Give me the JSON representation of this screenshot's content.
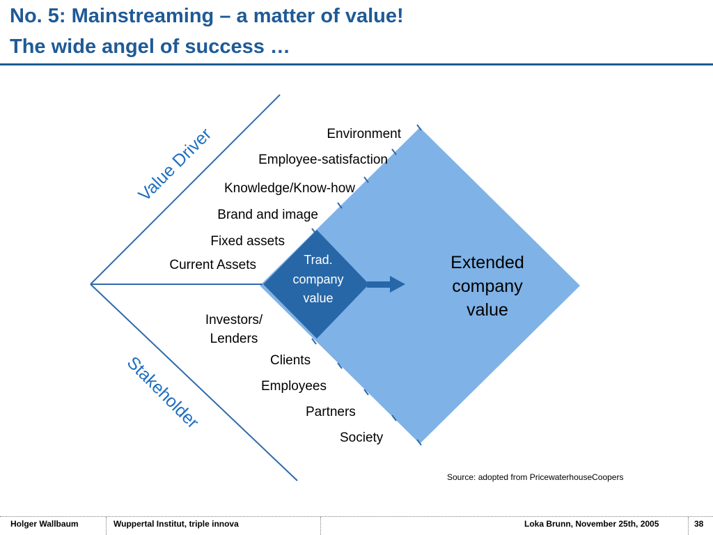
{
  "title": {
    "line1": "No. 5: Mainstreaming – a matter of value!",
    "line2": "The wide angel of success …"
  },
  "diagram": {
    "axis_upper": "Value Driver",
    "axis_lower": "Stakeholder",
    "value_drivers": [
      "Environment",
      "Employee-satisfaction",
      "Knowledge/Know-how",
      "Brand and image",
      "Fixed assets",
      "Current Assets"
    ],
    "stakeholders": [
      "Investors/",
      "Lenders",
      "Clients",
      "Employees",
      "Partners",
      "Society"
    ],
    "inner_label": [
      "Trad.",
      "company",
      "value"
    ],
    "outer_label": [
      "Extended",
      "company",
      "value"
    ]
  },
  "source": "Source: adopted from PricewaterhouseCoopers",
  "footer": {
    "author": "Holger Wallbaum",
    "institute": "Wuppertal Institut, triple innova",
    "event": "Loka Brunn, November 25th, 2005",
    "page": "38"
  },
  "colors": {
    "title": "#1f5a96",
    "line": "#2f6aa9",
    "outer_diamond": "#7fb2e6",
    "inner_diamond": "#2767a8",
    "axis_text": "#1f6fc0"
  }
}
